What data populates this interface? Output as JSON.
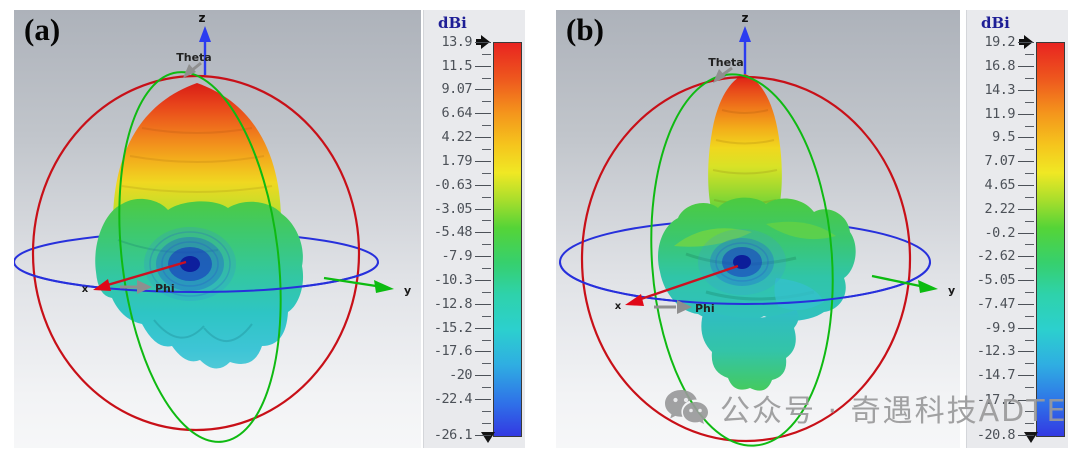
{
  "panels": [
    {
      "label": "(a)",
      "axes": {
        "z": "z",
        "y": "y",
        "x": "x",
        "theta": "Theta",
        "phi": "Phi"
      },
      "colorbar": {
        "title": "dBi",
        "max": 13.9,
        "min": -26.1,
        "ticks": [
          "13.9",
          "11.5",
          "9.07",
          "6.64",
          "4.22",
          "1.79",
          "-0.63",
          "-3.05",
          "-5.48",
          "-7.9",
          "-10.3",
          "-12.8",
          "-15.2",
          "-17.6",
          "-20",
          "-22.4",
          "-26.1"
        ]
      }
    },
    {
      "label": "(b)",
      "axes": {
        "z": "z",
        "y": "y",
        "x": "x",
        "theta": "Theta",
        "phi": "Phi"
      },
      "colorbar": {
        "title": "dBi",
        "max": 19.2,
        "min": -20.8,
        "ticks": [
          "19.2",
          "16.8",
          "14.3",
          "11.9",
          "9.5",
          "7.07",
          "4.65",
          "2.22",
          "-0.2",
          "-2.62",
          "-5.05",
          "-7.47",
          "-9.9",
          "-12.3",
          "-14.7",
          "-17.2",
          "-20.8"
        ]
      }
    }
  ],
  "watermark": {
    "icon": "wechat-icon",
    "text": "公众号 · 奇遇科技ADTE"
  },
  "colors": {
    "colorbar_top": "#e82420",
    "colorbar_bottom": "#3339e2",
    "axis_x_red": "#cc1020",
    "axis_y_green": "#0cbb10",
    "axis_z_blue": "#2b3cf0",
    "great_circle_red": "#c81018",
    "great_circle_green": "#0fba12",
    "equator_blue": "#2730dc",
    "colorbar_title_navy": "#1e1e96",
    "watermark_gray": "#9a9a9b"
  },
  "chart_data": [
    {
      "type": "3d-surface",
      "subtype": "antenna-farfield-radiation-pattern",
      "panel": "(a)",
      "units": "dBi",
      "max_dBi": 13.9,
      "min_dBi": -26.1,
      "colorbar_ticks_dBi": [
        13.9,
        11.5,
        9.07,
        6.64,
        4.22,
        1.79,
        -0.63,
        -3.05,
        -5.48,
        -7.9,
        -10.3,
        -12.8,
        -15.2,
        -17.6,
        -20,
        -22.4,
        -26.1
      ],
      "axes": [
        "x",
        "y",
        "z",
        "Theta",
        "Phi"
      ],
      "colormap": "rainbow: red = max gain, blue = min",
      "main_lobe_direction": "+z (Theta = 0)",
      "description": "Broad main lobe along +z (red peak ~13.9 dBi), green/cyan minor back lobes below equator, deep blue null toward +x axis"
    },
    {
      "type": "3d-surface",
      "subtype": "antenna-farfield-radiation-pattern",
      "panel": "(b)",
      "units": "dBi",
      "max_dBi": 19.2,
      "min_dBi": -20.8,
      "colorbar_ticks_dBi": [
        19.2,
        16.8,
        14.3,
        11.9,
        9.5,
        7.07,
        4.65,
        2.22,
        -0.2,
        -2.62,
        -5.05,
        -7.47,
        -9.9,
        -12.3,
        -14.7,
        -17.2,
        -20.8
      ],
      "axes": [
        "x",
        "y",
        "z",
        "Theta",
        "Phi"
      ],
      "colormap": "rainbow: red = max gain, blue = min",
      "main_lobe_direction": "+z (Theta = 0)",
      "description": "Narrow pencil beam along +z (red tip ~19.2 dBi) with multiple green/teal side lobes around the equator and blue null toward +x"
    }
  ]
}
